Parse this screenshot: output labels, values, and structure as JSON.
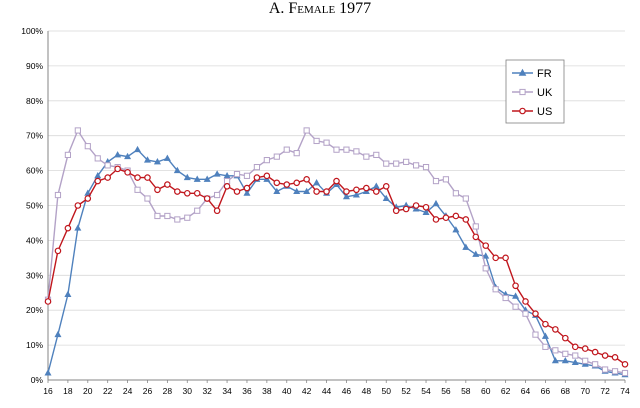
{
  "chart_data": {
    "type": "line",
    "title_prefix": "A.",
    "title_main": "Female",
    "title_year": "1977",
    "xlabel": "",
    "ylabel": "",
    "x": [
      16,
      17,
      18,
      19,
      20,
      21,
      22,
      23,
      24,
      25,
      26,
      27,
      28,
      29,
      30,
      31,
      32,
      33,
      34,
      35,
      36,
      37,
      38,
      39,
      40,
      41,
      42,
      43,
      44,
      45,
      46,
      47,
      48,
      49,
      50,
      51,
      52,
      53,
      54,
      55,
      56,
      57,
      58,
      59,
      60,
      61,
      62,
      63,
      64,
      65,
      66,
      67,
      68,
      69,
      70,
      71,
      72,
      73,
      74
    ],
    "xlim": [
      16,
      74
    ],
    "ylim": [
      0,
      100
    ],
    "x_ticks": [
      16,
      18,
      20,
      22,
      24,
      26,
      28,
      30,
      32,
      34,
      36,
      38,
      40,
      42,
      44,
      46,
      48,
      50,
      52,
      54,
      56,
      58,
      60,
      62,
      64,
      66,
      68,
      70,
      72,
      74
    ],
    "y_ticks": [
      0,
      10,
      20,
      30,
      40,
      50,
      60,
      70,
      80,
      90,
      100
    ],
    "y_tick_suffix": "%",
    "grid": "horizontal",
    "legend_position": "top-right",
    "series": [
      {
        "name": "FR",
        "color": "#4f81bd",
        "marker": "triangle",
        "values": [
          2,
          13,
          24.5,
          43.5,
          53.5,
          58.5,
          62.5,
          64.5,
          64,
          66,
          63,
          62.5,
          63.5,
          60,
          58,
          57.5,
          57.5,
          59,
          58.5,
          58.5,
          53.5,
          57.5,
          57.5,
          54,
          55.5,
          54,
          54,
          56.5,
          53.5,
          56,
          52.5,
          53,
          54,
          55.5,
          52,
          49.5,
          50,
          49,
          48,
          50.5,
          47,
          43,
          38,
          36,
          35.5,
          26.5,
          24.5,
          24,
          20,
          18.5,
          12.5,
          5.5,
          5.5,
          5,
          4.5,
          4,
          2.5,
          2,
          1.5
        ]
      },
      {
        "name": "UK",
        "color": "#b3a2c7",
        "marker": "square",
        "values": [
          23,
          53,
          64.5,
          71.5,
          67,
          63.5,
          61.5,
          61,
          60,
          54.5,
          52,
          47,
          47,
          46,
          46.5,
          48.5,
          52,
          53,
          57,
          59,
          58.5,
          61,
          63,
          64,
          66,
          65,
          71.5,
          68.5,
          68,
          66,
          66,
          65.5,
          64,
          64.5,
          62,
          62,
          62.5,
          61.5,
          61,
          57,
          57.5,
          53.5,
          52,
          44,
          32,
          26,
          23.5,
          21,
          19,
          13,
          9.5,
          8.5,
          7.5,
          7,
          5.5,
          4.5,
          3,
          2.5,
          2
        ]
      },
      {
        "name": "US",
        "color": "#c0161d",
        "marker": "circle",
        "values": [
          22.5,
          37,
          43.5,
          50,
          52,
          57,
          58,
          60.5,
          59.5,
          58,
          58,
          54.5,
          56,
          54,
          53.5,
          53.5,
          52,
          48.5,
          55.5,
          54,
          55,
          58,
          58.5,
          56.5,
          56,
          56.5,
          57.5,
          54,
          54,
          57,
          54,
          54.5,
          55,
          54,
          55.5,
          48.5,
          49,
          50,
          49.5,
          46,
          46.5,
          47,
          46,
          41,
          38.5,
          35,
          35,
          27,
          22.5,
          19,
          16,
          14.5,
          12,
          9.5,
          9,
          8,
          7,
          6.5,
          4.5
        ]
      }
    ]
  }
}
